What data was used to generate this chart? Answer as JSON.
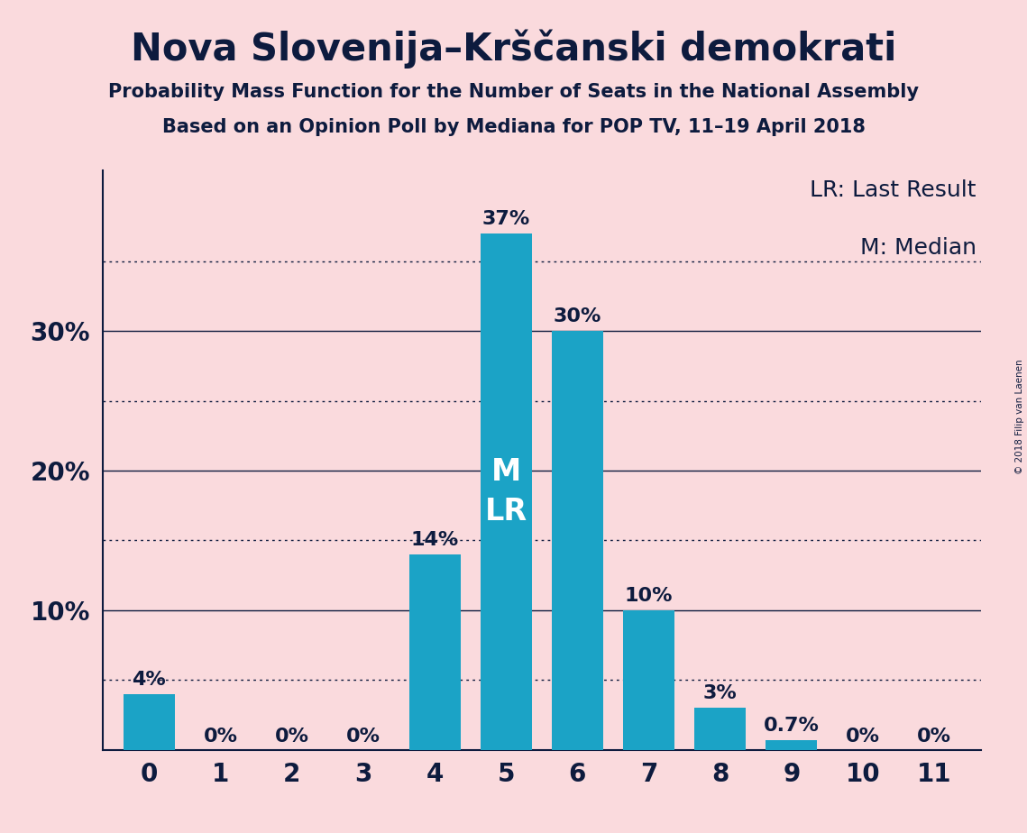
{
  "title": "Nova Slovenija–Krščanski demokrati",
  "subtitle1": "Probability Mass Function for the Number of Seats in the National Assembly",
  "subtitle2": "Based on an Opinion Poll by Mediana for POP TV, 11–19 April 2018",
  "copyright": "© 2018 Filip van Laenen",
  "categories": [
    0,
    1,
    2,
    3,
    4,
    5,
    6,
    7,
    8,
    9,
    10,
    11
  ],
  "values": [
    0.04,
    0.0,
    0.0,
    0.0,
    0.14,
    0.37,
    0.3,
    0.1,
    0.03,
    0.007,
    0.0,
    0.0
  ],
  "labels": [
    "4%",
    "0%",
    "0%",
    "0%",
    "14%",
    "37%",
    "30%",
    "10%",
    "3%",
    "0.7%",
    "0%",
    "0%"
  ],
  "bar_color": "#1ba3c6",
  "background_color": "#fadadd",
  "text_color": "#0d1b3e",
  "grid_dotted_at": [
    0.05,
    0.15,
    0.25,
    0.35
  ],
  "solid_grid_at": [
    0.1,
    0.2,
    0.3
  ],
  "ylim_max": 0.415,
  "legend_lr": "LR: Last Result",
  "legend_m": "M: Median",
  "bar_inside_text": "M\nLR",
  "bar_inside_seat": 5
}
